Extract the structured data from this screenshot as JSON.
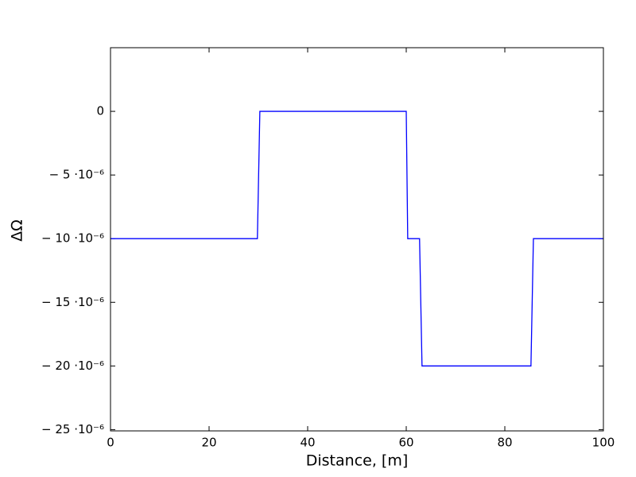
{
  "chart_data": {
    "type": "line",
    "x_label": "Distance, [m]",
    "y_label": "ΔΩ",
    "x": [
      0,
      29.8,
      30.3,
      60.0,
      60.3,
      62.7,
      63.2,
      85.3,
      85.8,
      100
    ],
    "series": [
      {
        "name": "ΔΩ",
        "color": "#0000ff",
        "values": [
          -1e-05,
          -1e-05,
          0,
          0,
          -1e-05,
          -1e-05,
          -2e-05,
          -2e-05,
          -1e-05,
          -1e-05
        ]
      }
    ],
    "xlim": [
      0,
      100
    ],
    "xticks": [
      0,
      20,
      40,
      60,
      80,
      100
    ],
    "ylim": [
      -2.51e-05,
      5e-06
    ],
    "yticks": [
      {
        "value": 0,
        "label": "0"
      },
      {
        "value": -5e-06,
        "label": "− 5 ·10⁻⁶"
      },
      {
        "value": -1e-05,
        "label": "− 10 ·10⁻⁶"
      },
      {
        "value": -1.5e-05,
        "label": "− 15 ·10⁻⁶"
      },
      {
        "value": -2e-05,
        "label": "− 20 ·10⁻⁶"
      },
      {
        "value": -2.5e-05,
        "label": "− 25 ·10⁻⁶"
      }
    ],
    "grid": false
  }
}
